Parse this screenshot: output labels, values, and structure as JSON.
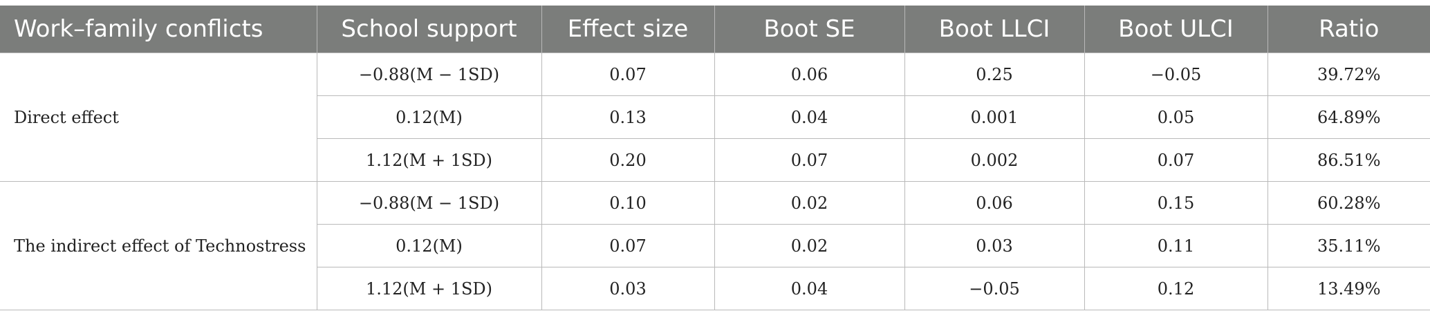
{
  "headers": [
    "Work–family conflicts",
    "School support",
    "Effect size",
    "Boot SE",
    "Boot LLCI",
    "Boot ULCI",
    "Ratio"
  ],
  "groups": [
    {
      "label": "Direct effect",
      "rows": [
        [
          "−0.88(M − 1SD)",
          "0.07",
          "0.06",
          "0.25",
          "−0.05",
          "39.72%"
        ],
        [
          "0.12(M)",
          "0.13",
          "0.04",
          "0.001",
          "0.05",
          "64.89%"
        ],
        [
          "1.12(M + 1SD)",
          "0.20",
          "0.07",
          "0.002",
          "0.07",
          "86.51%"
        ]
      ]
    },
    {
      "label": "The indirect effect of Technostress",
      "rows": [
        [
          "−0.88(M − 1SD)",
          "0.10",
          "0.02",
          "0.06",
          "0.15",
          "60.28%"
        ],
        [
          "0.12(M)",
          "0.07",
          "0.02",
          "0.03",
          "0.11",
          "35.11%"
        ],
        [
          "1.12(M + 1SD)",
          "0.03",
          "0.04",
          "−0.05",
          "0.12",
          "13.49%"
        ]
      ]
    }
  ]
}
